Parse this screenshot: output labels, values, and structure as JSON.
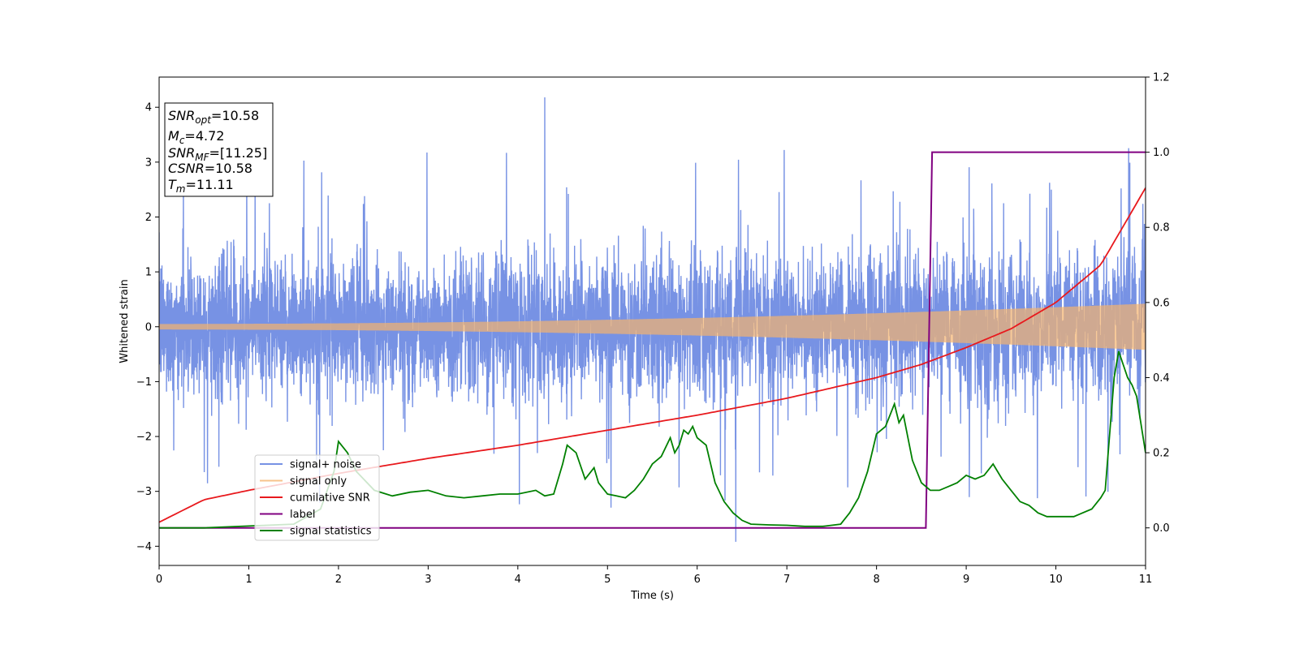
{
  "chart_data": {
    "type": "line",
    "xlabel": "Time (s)",
    "ylabel": "Whitened strain",
    "xlim": [
      0,
      11
    ],
    "ylim": [
      -4.35,
      4.55
    ],
    "y2lim": [
      -0.1,
      1.2
    ],
    "xticks": [
      "0",
      "1",
      "2",
      "3",
      "4",
      "5",
      "6",
      "7",
      "8",
      "9",
      "10",
      "11"
    ],
    "yticks": [
      "−4",
      "−3",
      "−2",
      "−1",
      "0",
      "1",
      "2",
      "3",
      "4"
    ],
    "y2ticks": [
      "0.0",
      "0.2",
      "0.4",
      "0.6",
      "0.8",
      "1.0",
      "1.2"
    ],
    "grid": false,
    "legend_position": "lower-left",
    "info_box": {
      "lines": [
        {
          "var": "SNR",
          "sub": "opt",
          "text": "=10.58"
        },
        {
          "var": "M",
          "sub": "c",
          "text": "=4.72"
        },
        {
          "var": "SNR",
          "sub": "MF",
          "text": "=[11.25]"
        },
        {
          "var": "CSNR",
          "sub": "",
          "text": "=10.58"
        },
        {
          "var": "T",
          "sub": "m",
          "text": "=11.11"
        }
      ]
    },
    "series": [
      {
        "name": "signal+ noise",
        "color": "#5577dd",
        "noise_std": 0.62,
        "spike_max": 4.18,
        "spike_min": -3.92
      },
      {
        "name": "signal only",
        "color": "#f5b46e",
        "amplitude_start": 0.05,
        "amplitude_end": 0.42
      },
      {
        "name": "cumilative SNR",
        "color": "#e8191d",
        "axis": "right",
        "x": [
          0,
          0.5,
          1,
          2,
          3,
          4,
          5,
          6,
          7,
          8,
          8.5,
          9,
          9.5,
          10,
          10.5,
          11
        ],
        "y": [
          0.015,
          0.075,
          0.1,
          0.145,
          0.185,
          0.22,
          0.26,
          0.3,
          0.345,
          0.4,
          0.435,
          0.48,
          0.53,
          0.6,
          0.7,
          0.905
        ]
      },
      {
        "name": "label",
        "color": "#800080",
        "axis": "right",
        "x": [
          0,
          8.55,
          8.62,
          11
        ],
        "y": [
          0,
          0,
          1,
          1
        ]
      },
      {
        "name": "signal statistics",
        "color": "#008000",
        "axis": "right",
        "x": [
          0,
          0.5,
          1,
          1.5,
          1.8,
          1.95,
          2.0,
          2.1,
          2.2,
          2.4,
          2.6,
          2.8,
          3.0,
          3.2,
          3.4,
          3.6,
          3.8,
          4.0,
          4.2,
          4.3,
          4.4,
          4.5,
          4.55,
          4.65,
          4.75,
          4.85,
          4.9,
          5.0,
          5.1,
          5.2,
          5.3,
          5.4,
          5.5,
          5.6,
          5.7,
          5.75,
          5.8,
          5.85,
          5.9,
          5.95,
          6.0,
          6.1,
          6.2,
          6.3,
          6.4,
          6.5,
          6.6,
          6.8,
          7.0,
          7.2,
          7.4,
          7.6,
          7.7,
          7.8,
          7.9,
          8.0,
          8.1,
          8.2,
          8.25,
          8.3,
          8.4,
          8.5,
          8.6,
          8.7,
          8.8,
          8.9,
          9.0,
          9.1,
          9.2,
          9.3,
          9.4,
          9.5,
          9.6,
          9.7,
          9.8,
          9.9,
          10.0,
          10.2,
          10.4,
          10.5,
          10.55,
          10.6,
          10.65,
          10.7,
          10.8,
          10.85,
          10.9,
          11.0
        ],
        "y": [
          0,
          0,
          0.005,
          0.01,
          0.05,
          0.15,
          0.23,
          0.2,
          0.15,
          0.1,
          0.085,
          0.095,
          0.1,
          0.085,
          0.08,
          0.085,
          0.09,
          0.09,
          0.1,
          0.085,
          0.09,
          0.17,
          0.22,
          0.2,
          0.13,
          0.16,
          0.12,
          0.09,
          0.085,
          0.08,
          0.1,
          0.13,
          0.17,
          0.19,
          0.24,
          0.2,
          0.22,
          0.26,
          0.25,
          0.27,
          0.24,
          0.22,
          0.12,
          0.07,
          0.04,
          0.02,
          0.01,
          0.008,
          0.007,
          0.004,
          0.004,
          0.01,
          0.04,
          0.08,
          0.15,
          0.25,
          0.27,
          0.33,
          0.28,
          0.3,
          0.18,
          0.12,
          0.1,
          0.1,
          0.11,
          0.12,
          0.14,
          0.13,
          0.14,
          0.17,
          0.13,
          0.1,
          0.07,
          0.06,
          0.04,
          0.03,
          0.03,
          0.03,
          0.05,
          0.08,
          0.1,
          0.25,
          0.4,
          0.47,
          0.4,
          0.38,
          0.35,
          0.2
        ]
      }
    ]
  }
}
